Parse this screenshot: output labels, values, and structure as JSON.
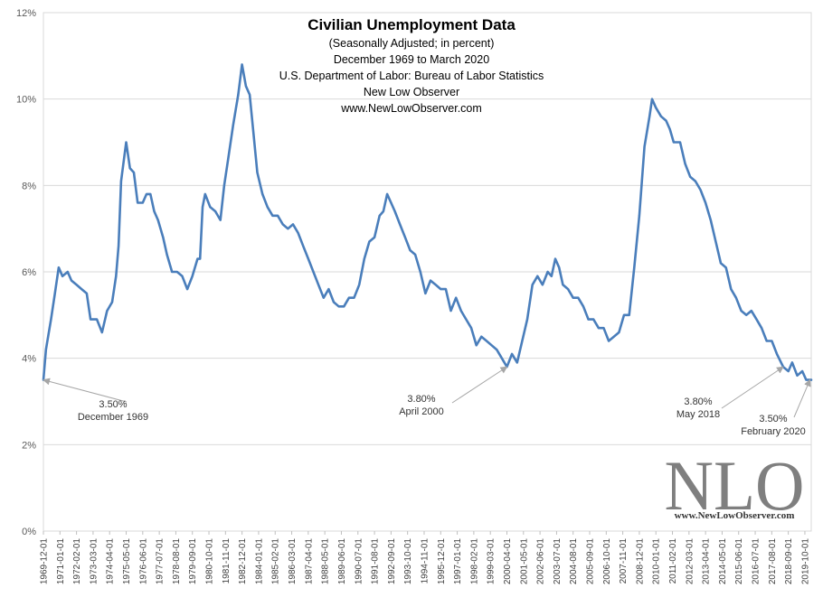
{
  "chart_data": {
    "type": "line",
    "title": "Civilian  Unemployment  Data",
    "subtitle_lines": [
      "(Seasonally Adjusted; in percent)",
      "December 1969 to March 2020",
      "U.S. Department of Labor: Bureau of Labor Statistics",
      "New Low Observer",
      "www.NewLowObserver.com"
    ],
    "xlabel": "",
    "ylabel": "",
    "ylim": [
      0,
      12
    ],
    "y_ticks": [
      "0%",
      "2%",
      "4%",
      "6%",
      "8%",
      "10%",
      "12%"
    ],
    "x_tick_labels": [
      "1969-12-01",
      "1971-01-01",
      "1972-02-01",
      "1973-03-01",
      "1974-04-01",
      "1975-05-01",
      "1976-06-01",
      "1977-07-01",
      "1978-08-01",
      "1979-09-01",
      "1980-10-01",
      "1981-11-01",
      "1982-12-01",
      "1984-01-01",
      "1985-02-01",
      "1986-03-01",
      "1987-04-01",
      "1988-05-01",
      "1989-06-01",
      "1990-07-01",
      "1991-08-01",
      "1992-09-01",
      "1993-10-01",
      "1994-11-01",
      "1995-12-01",
      "1997-01-01",
      "1998-02-01",
      "1999-03-01",
      "2000-04-01",
      "2001-05-01",
      "2002-06-01",
      "2003-07-01",
      "2004-08-01",
      "2005-09-01",
      "2006-10-01",
      "2007-11-01",
      "2008-12-01",
      "2010-01-01",
      "2011-02-01",
      "2012-03-01",
      "2013-04-01",
      "2014-05-01",
      "2015-06-01",
      "2016-07-01",
      "2017-08-01",
      "2018-09-01",
      "2019-10-01"
    ],
    "grid": true,
    "legend": "none",
    "series": [
      {
        "color": "#4a7ebb",
        "points": [
          [
            "1969-12",
            3.5
          ],
          [
            "1970-02",
            4.2
          ],
          [
            "1970-06",
            4.9
          ],
          [
            "1970-09",
            5.5
          ],
          [
            "1970-12",
            6.1
          ],
          [
            "1971-03",
            5.9
          ],
          [
            "1971-07",
            6.0
          ],
          [
            "1971-10",
            5.8
          ],
          [
            "1972-02",
            5.7
          ],
          [
            "1972-06",
            5.6
          ],
          [
            "1972-10",
            5.5
          ],
          [
            "1973-01",
            4.9
          ],
          [
            "1973-06",
            4.9
          ],
          [
            "1973-10",
            4.6
          ],
          [
            "1974-02",
            5.1
          ],
          [
            "1974-06",
            5.3
          ],
          [
            "1974-09",
            5.9
          ],
          [
            "1974-11",
            6.6
          ],
          [
            "1975-01",
            8.1
          ],
          [
            "1975-05",
            9.0
          ],
          [
            "1975-08",
            8.4
          ],
          [
            "1975-11",
            8.3
          ],
          [
            "1976-02",
            7.6
          ],
          [
            "1976-06",
            7.6
          ],
          [
            "1976-09",
            7.8
          ],
          [
            "1976-12",
            7.8
          ],
          [
            "1977-03",
            7.4
          ],
          [
            "1977-06",
            7.2
          ],
          [
            "1977-10",
            6.8
          ],
          [
            "1978-01",
            6.4
          ],
          [
            "1978-05",
            6.0
          ],
          [
            "1978-09",
            6.0
          ],
          [
            "1979-01",
            5.9
          ],
          [
            "1979-05",
            5.6
          ],
          [
            "1979-09",
            5.9
          ],
          [
            "1980-01",
            6.3
          ],
          [
            "1980-03",
            6.3
          ],
          [
            "1980-05",
            7.5
          ],
          [
            "1980-07",
            7.8
          ],
          [
            "1980-11",
            7.5
          ],
          [
            "1981-03",
            7.4
          ],
          [
            "1981-07",
            7.2
          ],
          [
            "1981-10",
            8.0
          ],
          [
            "1982-01",
            8.6
          ],
          [
            "1982-05",
            9.4
          ],
          [
            "1982-09",
            10.1
          ],
          [
            "1982-12",
            10.8
          ],
          [
            "1983-03",
            10.3
          ],
          [
            "1983-06",
            10.1
          ],
          [
            "1983-09",
            9.2
          ],
          [
            "1983-12",
            8.3
          ],
          [
            "1984-04",
            7.8
          ],
          [
            "1984-08",
            7.5
          ],
          [
            "1984-12",
            7.3
          ],
          [
            "1985-04",
            7.3
          ],
          [
            "1985-08",
            7.1
          ],
          [
            "1985-12",
            7.0
          ],
          [
            "1986-04",
            7.1
          ],
          [
            "1986-08",
            6.9
          ],
          [
            "1986-12",
            6.6
          ],
          [
            "1987-04",
            6.3
          ],
          [
            "1987-08",
            6.0
          ],
          [
            "1987-12",
            5.7
          ],
          [
            "1988-04",
            5.4
          ],
          [
            "1988-08",
            5.6
          ],
          [
            "1988-12",
            5.3
          ],
          [
            "1989-04",
            5.2
          ],
          [
            "1989-08",
            5.2
          ],
          [
            "1989-12",
            5.4
          ],
          [
            "1990-04",
            5.4
          ],
          [
            "1990-08",
            5.7
          ],
          [
            "1990-12",
            6.3
          ],
          [
            "1991-04",
            6.7
          ],
          [
            "1991-08",
            6.8
          ],
          [
            "1991-12",
            7.3
          ],
          [
            "1992-03",
            7.4
          ],
          [
            "1992-06",
            7.8
          ],
          [
            "1992-09",
            7.6
          ],
          [
            "1992-12",
            7.4
          ],
          [
            "1993-04",
            7.1
          ],
          [
            "1993-08",
            6.8
          ],
          [
            "1993-12",
            6.5
          ],
          [
            "1994-04",
            6.4
          ],
          [
            "1994-08",
            6.0
          ],
          [
            "1994-12",
            5.5
          ],
          [
            "1995-04",
            5.8
          ],
          [
            "1995-08",
            5.7
          ],
          [
            "1995-12",
            5.6
          ],
          [
            "1996-04",
            5.6
          ],
          [
            "1996-08",
            5.1
          ],
          [
            "1996-12",
            5.4
          ],
          [
            "1997-04",
            5.1
          ],
          [
            "1997-08",
            4.9
          ],
          [
            "1997-12",
            4.7
          ],
          [
            "1998-04",
            4.3
          ],
          [
            "1998-08",
            4.5
          ],
          [
            "1998-12",
            4.4
          ],
          [
            "1999-04",
            4.3
          ],
          [
            "1999-08",
            4.2
          ],
          [
            "1999-12",
            4.0
          ],
          [
            "2000-04",
            3.8
          ],
          [
            "2000-08",
            4.1
          ],
          [
            "2000-12",
            3.9
          ],
          [
            "2001-04",
            4.4
          ],
          [
            "2001-08",
            4.9
          ],
          [
            "2001-12",
            5.7
          ],
          [
            "2002-04",
            5.9
          ],
          [
            "2002-08",
            5.7
          ],
          [
            "2002-12",
            6.0
          ],
          [
            "2003-03",
            5.9
          ],
          [
            "2003-06",
            6.3
          ],
          [
            "2003-09",
            6.1
          ],
          [
            "2003-12",
            5.7
          ],
          [
            "2004-04",
            5.6
          ],
          [
            "2004-08",
            5.4
          ],
          [
            "2004-12",
            5.4
          ],
          [
            "2005-04",
            5.2
          ],
          [
            "2005-08",
            4.9
          ],
          [
            "2005-12",
            4.9
          ],
          [
            "2006-04",
            4.7
          ],
          [
            "2006-08",
            4.7
          ],
          [
            "2006-12",
            4.4
          ],
          [
            "2007-04",
            4.5
          ],
          [
            "2007-08",
            4.6
          ],
          [
            "2007-12",
            5.0
          ],
          [
            "2008-04",
            5.0
          ],
          [
            "2008-08",
            6.1
          ],
          [
            "2008-12",
            7.3
          ],
          [
            "2009-04",
            8.9
          ],
          [
            "2009-08",
            9.6
          ],
          [
            "2009-10",
            10.0
          ],
          [
            "2010-01",
            9.8
          ],
          [
            "2010-05",
            9.6
          ],
          [
            "2010-09",
            9.5
          ],
          [
            "2010-12",
            9.3
          ],
          [
            "2011-03",
            9.0
          ],
          [
            "2011-08",
            9.0
          ],
          [
            "2011-12",
            8.5
          ],
          [
            "2012-04",
            8.2
          ],
          [
            "2012-08",
            8.1
          ],
          [
            "2012-12",
            7.9
          ],
          [
            "2013-04",
            7.6
          ],
          [
            "2013-08",
            7.2
          ],
          [
            "2013-12",
            6.7
          ],
          [
            "2014-04",
            6.2
          ],
          [
            "2014-08",
            6.1
          ],
          [
            "2014-12",
            5.6
          ],
          [
            "2015-04",
            5.4
          ],
          [
            "2015-08",
            5.1
          ],
          [
            "2015-12",
            5.0
          ],
          [
            "2016-04",
            5.1
          ],
          [
            "2016-08",
            4.9
          ],
          [
            "2016-12",
            4.7
          ],
          [
            "2017-04",
            4.4
          ],
          [
            "2017-08",
            4.4
          ],
          [
            "2017-12",
            4.1
          ],
          [
            "2018-05",
            3.8
          ],
          [
            "2018-09",
            3.7
          ],
          [
            "2018-12",
            3.9
          ],
          [
            "2019-04",
            3.6
          ],
          [
            "2019-08",
            3.7
          ],
          [
            "2019-11",
            3.5
          ],
          [
            "2020-02",
            3.5
          ],
          [
            "2020-03",
            3.5
          ]
        ]
      }
    ],
    "annotations": [
      {
        "lines": [
          "3.50%",
          "December 1969"
        ],
        "x": "1969-12",
        "y": 3.5
      },
      {
        "lines": [
          "3.80%",
          "April 2000"
        ],
        "x": "2000-04",
        "y": 3.8
      },
      {
        "lines": [
          "3.80%",
          "May 2018"
        ],
        "x": "2018-05",
        "y": 3.8
      },
      {
        "lines": [
          "3.50%",
          "February 2020"
        ],
        "x": "2020-02",
        "y": 3.5
      }
    ]
  },
  "watermark": {
    "logo_text": "NLO",
    "url": "www.NewLowObserver.com"
  },
  "colors": {
    "line": "#4a7ebb",
    "grid": "#d9d9d9",
    "arrow": "#a6a6a6",
    "watermark": "#7f7f7f"
  }
}
